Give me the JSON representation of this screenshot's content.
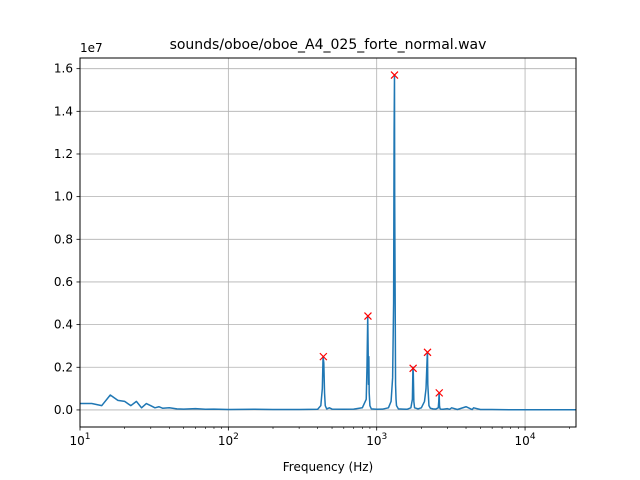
{
  "chart_data": {
    "type": "line",
    "title": "sounds/oboe/oboe_A4_025_forte_normal.wav",
    "xlabel": "Frequency (Hz)",
    "ylabel": "",
    "y_offset_label": "1e7",
    "x_scale": "log",
    "xlim": [
      10,
      22050
    ],
    "ylim": [
      -0.08,
      1.65
    ],
    "y_unit_multiplier": 10000000,
    "grid": true,
    "x_major_ticks": [
      {
        "value": 10,
        "base": "10",
        "exp": "1"
      },
      {
        "value": 100,
        "base": "10",
        "exp": "2"
      },
      {
        "value": 1000,
        "base": "10",
        "exp": "3"
      },
      {
        "value": 10000,
        "base": "10",
        "exp": "4"
      }
    ],
    "y_ticks": [
      {
        "value": 0.0,
        "label": "0.0"
      },
      {
        "value": 0.2,
        "label": "0.2"
      },
      {
        "value": 0.4,
        "label": "0.4"
      },
      {
        "value": 0.6,
        "label": "0.6"
      },
      {
        "value": 0.8,
        "label": "0.8"
      },
      {
        "value": 1.0,
        "label": "1.0"
      },
      {
        "value": 1.2,
        "label": "1.2"
      },
      {
        "value": 1.4,
        "label": "1.4"
      },
      {
        "value": 1.6,
        "label": "1.6"
      }
    ],
    "series": [
      {
        "color": "#1f77b4",
        "x": [
          10,
          12,
          14,
          16,
          18,
          20,
          22,
          24,
          26,
          28,
          30,
          32,
          34,
          36,
          40,
          45,
          50,
          60,
          70,
          80,
          100,
          150,
          200,
          300,
          400,
          420,
          430,
          435,
          440,
          445,
          450,
          460,
          480,
          500,
          600,
          700,
          800,
          850,
          860,
          870,
          875,
          880,
          885,
          890,
          900,
          920,
          1000,
          1100,
          1200,
          1250,
          1280,
          1300,
          1310,
          1318,
          1322,
          1330,
          1340,
          1350,
          1360,
          1400,
          1500,
          1600,
          1700,
          1740,
          1755,
          1765,
          1780,
          1800,
          1900,
          2000,
          2100,
          2150,
          2190,
          2200,
          2210,
          2250,
          2300,
          2400,
          2500,
          2600,
          2620,
          2635,
          2640,
          2650,
          2670,
          2700,
          2800,
          3000,
          3100,
          3200,
          3500,
          4000,
          4400,
          4500,
          5000,
          6000,
          8000,
          10000,
          15000,
          22050
        ],
        "y": [
          0.03,
          0.03,
          0.02,
          0.07,
          0.045,
          0.04,
          0.02,
          0.04,
          0.01,
          0.03,
          0.02,
          0.01,
          0.015,
          0.008,
          0.01,
          0.005,
          0.004,
          0.006,
          0.003,
          0.004,
          0.002,
          0.003,
          0.002,
          0.002,
          0.003,
          0.02,
          0.1,
          0.25,
          0.22,
          0.08,
          0.02,
          0.005,
          0.01,
          0.004,
          0.003,
          0.004,
          0.01,
          0.05,
          0.2,
          0.44,
          0.3,
          0.12,
          0.25,
          0.08,
          0.02,
          0.005,
          0.003,
          0.004,
          0.01,
          0.04,
          0.15,
          0.5,
          1.3,
          1.57,
          1.0,
          0.6,
          0.12,
          0.05,
          0.02,
          0.005,
          0.004,
          0.003,
          0.01,
          0.05,
          0.2,
          0.17,
          0.04,
          0.01,
          0.005,
          0.01,
          0.04,
          0.1,
          0.25,
          0.27,
          0.12,
          0.02,
          0.008,
          0.005,
          0.004,
          0.01,
          0.04,
          0.08,
          0.06,
          0.02,
          0.006,
          0.004,
          0.003,
          0.006,
          0.003,
          0.01,
          0.002,
          0.015,
          0.002,
          0.01,
          0.002,
          0.002,
          0.001,
          0.001,
          0.001,
          0.001
        ]
      }
    ],
    "peaks": {
      "marker": "x",
      "color": "#ff0000",
      "x": [
        437,
        873,
        1318,
        1760,
        2200,
        2640
      ],
      "y": [
        0.25,
        0.44,
        1.57,
        0.195,
        0.27,
        0.08
      ]
    }
  }
}
